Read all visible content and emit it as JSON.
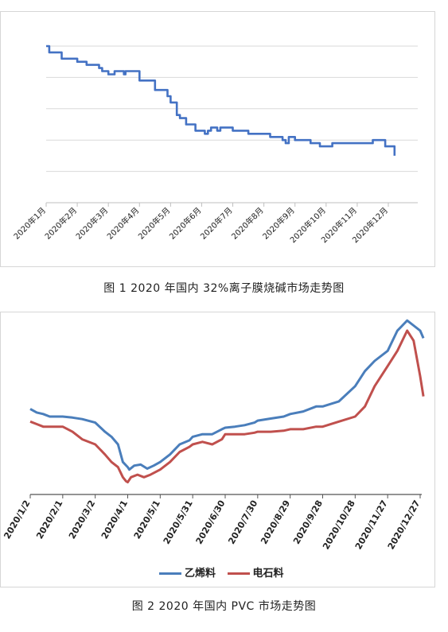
{
  "figure1": {
    "caption": "图 1  2020 年国内 32%离子膜烧碱市场走势图",
    "chart_data": {
      "type": "line",
      "x_tick_labels": [
        "2020年1月",
        "2020年2月",
        "2020年3月",
        "2020年4月",
        "2020年5月",
        "2020年6月",
        "2020年7月",
        "2020年8月",
        "2020年9月",
        "2020年10月",
        "2020年11月",
        "2020年12月"
      ],
      "grid": true,
      "y_tick_labels_shown": false,
      "series": [
        {
          "color": "#4472c4",
          "x": [
            0.0,
            0.1,
            0.5,
            1.0,
            1.3,
            1.7,
            1.8,
            2.0,
            2.2,
            2.5,
            2.55,
            3.0,
            3.5,
            3.9,
            4.0,
            4.2,
            4.3,
            4.5,
            4.8,
            5.0,
            5.1,
            5.2,
            5.3,
            5.5,
            5.6,
            6.0,
            6.5,
            7.0,
            7.2,
            7.5,
            7.6,
            7.7,
            7.8,
            8.0,
            8.5,
            8.8,
            9.0,
            9.2,
            9.5,
            9.6,
            10.0,
            10.5,
            10.6,
            10.9,
            11.0,
            11.2
          ],
          "y": [
            100,
            98,
            96,
            95,
            94,
            93,
            92,
            91,
            92,
            91,
            92,
            89,
            86,
            84,
            82,
            78,
            77,
            75,
            73,
            73,
            72,
            73,
            74,
            73,
            74,
            73,
            72,
            72,
            71,
            71,
            70,
            69,
            71,
            70,
            69,
            68,
            68,
            69,
            69,
            69,
            69,
            70,
            70,
            68,
            68,
            65
          ]
        }
      ]
    }
  },
  "figure2": {
    "caption": "图 2  2020 年国内 PVC 市场走势图",
    "chart_data": {
      "type": "line",
      "x_tick_labels": [
        "2020/1/2",
        "2020/2/1",
        "2020/3/2",
        "2020/4/1",
        "2020/5/1",
        "2020/5/31",
        "2020/6/30",
        "2020/7/30",
        "2020/8/29",
        "2020/9/28",
        "2020/10/28",
        "2020/11/27",
        "2020/12/27"
      ],
      "grid": false,
      "y_tick_labels_shown": false,
      "legend_position": "bottom",
      "series": [
        {
          "name": "乙烯料",
          "color": "#4a7ebb",
          "x": [
            0,
            0.2,
            0.4,
            0.6,
            1.0,
            1.3,
            1.6,
            2.0,
            2.3,
            2.5,
            2.7,
            2.85,
            3.0,
            3.05,
            3.2,
            3.4,
            3.6,
            3.8,
            4.0,
            4.3,
            4.6,
            4.9,
            5.0,
            5.3,
            5.6,
            5.9,
            6.0,
            6.3,
            6.6,
            6.9,
            7.0,
            7.4,
            7.8,
            8.0,
            8.4,
            8.8,
            9.0,
            9.5,
            10.0,
            10.3,
            10.6,
            11.0,
            11.3,
            11.6,
            11.8,
            12.0,
            12.1
          ],
          "y": [
            7150,
            7080,
            7050,
            7000,
            7000,
            6980,
            6950,
            6880,
            6700,
            6600,
            6450,
            6100,
            6000,
            5950,
            6030,
            6050,
            5970,
            6030,
            6100,
            6250,
            6450,
            6530,
            6600,
            6650,
            6650,
            6750,
            6780,
            6800,
            6830,
            6880,
            6920,
            6960,
            7000,
            7050,
            7100,
            7200,
            7200,
            7300,
            7600,
            7900,
            8100,
            8300,
            8700,
            8900,
            8800,
            8700,
            8550
          ]
        },
        {
          "name": "电石料",
          "color": "#c0504d",
          "x": [
            0,
            0.2,
            0.4,
            0.6,
            1.0,
            1.3,
            1.6,
            2.0,
            2.3,
            2.5,
            2.7,
            2.85,
            2.95,
            3.0,
            3.1,
            3.3,
            3.5,
            3.7,
            4.0,
            4.3,
            4.6,
            4.9,
            5.0,
            5.3,
            5.6,
            5.9,
            6.0,
            6.3,
            6.6,
            6.9,
            7.0,
            7.4,
            7.8,
            8.0,
            8.4,
            8.8,
            9.0,
            9.5,
            10.0,
            10.3,
            10.6,
            11.0,
            11.3,
            11.6,
            11.8,
            12.0,
            12.1
          ],
          "y": [
            6900,
            6850,
            6800,
            6800,
            6800,
            6700,
            6550,
            6450,
            6250,
            6100,
            6000,
            5800,
            5720,
            5700,
            5800,
            5850,
            5800,
            5850,
            5950,
            6100,
            6300,
            6400,
            6450,
            6500,
            6450,
            6550,
            6650,
            6650,
            6650,
            6680,
            6700,
            6700,
            6720,
            6750,
            6750,
            6800,
            6800,
            6900,
            7000,
            7200,
            7600,
            8000,
            8300,
            8700,
            8500,
            7800,
            7400
          ]
        }
      ]
    }
  }
}
